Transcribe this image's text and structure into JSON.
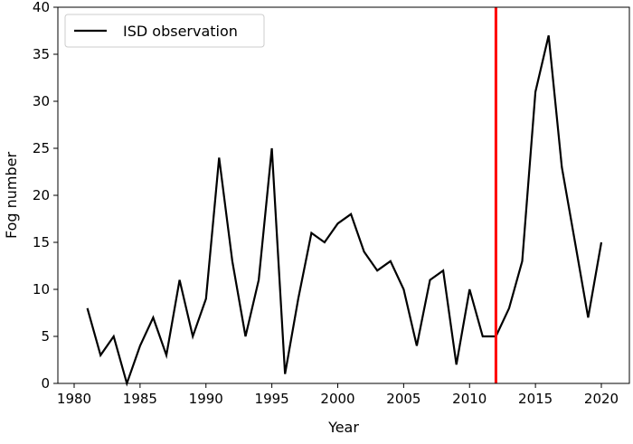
{
  "chart_data": {
    "type": "line",
    "title": "",
    "xlabel": "Year",
    "ylabel": "Fog number",
    "xlim": [
      1979,
      2021.5
    ],
    "ylim": [
      0,
      40
    ],
    "xticks": [
      1980,
      1985,
      1990,
      1995,
      2000,
      2005,
      2010,
      2015,
      2020
    ],
    "yticks": [
      0,
      5,
      10,
      15,
      20,
      25,
      30,
      35,
      40
    ],
    "grid": false,
    "legend": {
      "placement": "top-left",
      "entries": [
        "ISD observation"
      ]
    },
    "series": [
      {
        "name": "ISD observation",
        "color": "#000000",
        "x": [
          1981,
          1982,
          1983,
          1984,
          1985,
          1986,
          1987,
          1988,
          1989,
          1990,
          1991,
          1992,
          1993,
          1994,
          1995,
          1996,
          1997,
          1998,
          1999,
          2000,
          2001,
          2002,
          2003,
          2004,
          2005,
          2006,
          2007,
          2008,
          2009,
          2010,
          2011,
          2012,
          2013,
          2014,
          2015,
          2016,
          2017,
          2018,
          2019,
          2020
        ],
        "y": [
          8,
          3,
          5,
          0,
          4,
          7,
          3,
          11,
          5,
          9,
          24,
          13,
          5,
          11,
          25,
          1,
          9,
          16,
          15,
          17,
          18,
          14,
          12,
          13,
          10,
          4,
          11,
          12,
          2,
          10,
          5,
          5,
          8,
          13,
          31,
          37,
          23,
          15,
          7,
          15
        ]
      }
    ],
    "annotations": [
      {
        "type": "vertical-line",
        "x": 2012,
        "color": "#ff0000"
      }
    ]
  }
}
